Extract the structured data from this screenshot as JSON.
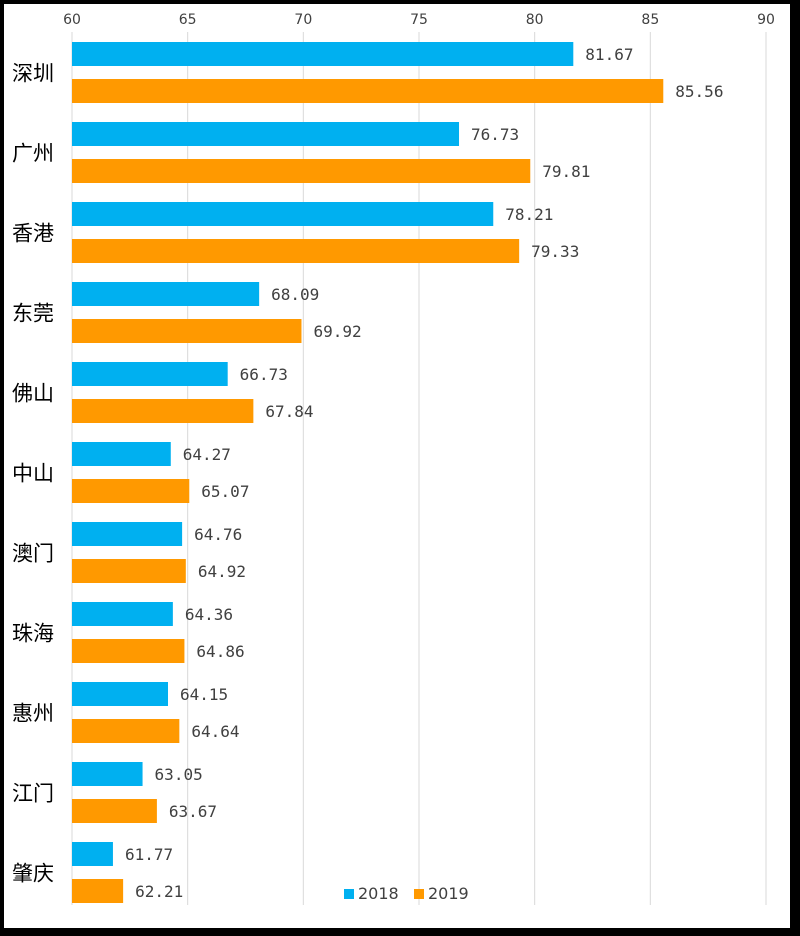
{
  "chart_data": {
    "type": "bar",
    "orientation": "horizontal",
    "title": "",
    "xlabel": "",
    "ylabel": "",
    "xlim": [
      60,
      90
    ],
    "xticks": [
      60,
      65,
      70,
      75,
      80,
      85,
      90
    ],
    "grid": "vertical",
    "legend_position": "bottom-right",
    "categories": [
      "深圳",
      "广州",
      "香港",
      "东莞",
      "佛山",
      "中山",
      "澳门",
      "珠海",
      "惠州",
      "江门",
      "肇庆"
    ],
    "series": [
      {
        "name": "2018",
        "color": "#00B0F0",
        "values": [
          81.67,
          76.73,
          78.21,
          68.09,
          66.73,
          64.27,
          64.76,
          64.36,
          64.15,
          63.05,
          61.77
        ],
        "labels": [
          "81.67",
          "76.73",
          "78.21",
          "68.09",
          "66.73",
          "64.27",
          "64.76",
          "64.36",
          "64.15",
          "63.05",
          "61.77"
        ]
      },
      {
        "name": "2019",
        "color": "#FF9900",
        "values": [
          85.56,
          79.81,
          79.33,
          69.92,
          67.84,
          65.07,
          64.92,
          64.86,
          64.64,
          63.67,
          62.21
        ],
        "labels": [
          "85.56",
          "79.81",
          "79.33",
          "69.92",
          "67.84",
          "65.07",
          "64.92",
          "64.86",
          "64.64",
          "63.67",
          "62.21"
        ]
      }
    ]
  }
}
